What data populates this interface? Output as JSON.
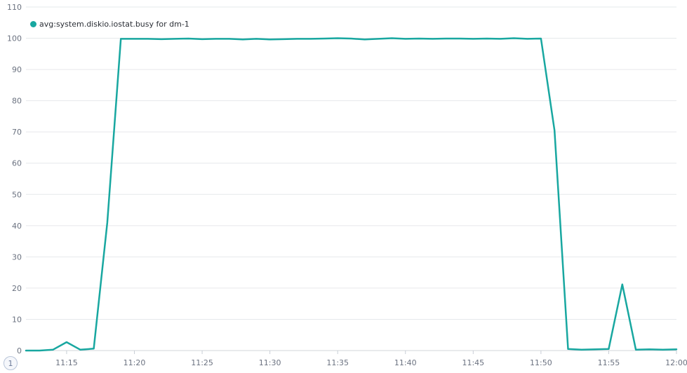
{
  "chart_data": {
    "type": "line",
    "title": "",
    "xlabel": "",
    "ylabel": "",
    "ylim": [
      0,
      110
    ],
    "yticks": [
      0,
      10,
      20,
      30,
      40,
      50,
      60,
      70,
      80,
      90,
      100,
      110
    ],
    "xlim": [
      "11:12",
      "12:00"
    ],
    "xticks": [
      "11:15",
      "11:20",
      "11:25",
      "11:30",
      "11:35",
      "11:40",
      "11:45",
      "11:50",
      "11:55",
      "12:00"
    ],
    "grid": true,
    "legend_position": "top-left",
    "series": [
      {
        "name": "avg:system.diskio.iostat.busy for dm-1",
        "color": "#18a7a0",
        "x": [
          "11:12",
          "11:13",
          "11:14",
          "11:15",
          "11:16",
          "11:17",
          "11:18",
          "11:19",
          "11:20",
          "11:21",
          "11:22",
          "11:23",
          "11:24",
          "11:25",
          "11:26",
          "11:27",
          "11:28",
          "11:29",
          "11:30",
          "11:31",
          "11:32",
          "11:33",
          "11:34",
          "11:35",
          "11:36",
          "11:37",
          "11:38",
          "11:39",
          "11:40",
          "11:41",
          "11:42",
          "11:43",
          "11:44",
          "11:45",
          "11:46",
          "11:47",
          "11:48",
          "11:49",
          "11:50",
          "11:51",
          "11:52",
          "11:53",
          "11:54",
          "11:55",
          "11:56",
          "11:57",
          "11:58",
          "11:59",
          "12:00"
        ],
        "values": [
          0,
          0,
          0.3,
          2.7,
          0.3,
          0.6,
          41,
          99.8,
          99.8,
          99.8,
          99.7,
          99.8,
          99.9,
          99.7,
          99.8,
          99.8,
          99.6,
          99.8,
          99.6,
          99.7,
          99.8,
          99.8,
          99.9,
          100,
          99.9,
          99.6,
          99.8,
          100,
          99.8,
          99.9,
          99.8,
          99.9,
          99.9,
          99.8,
          99.9,
          99.8,
          100,
          99.8,
          99.9,
          70.5,
          0.5,
          0.3,
          0.4,
          0.5,
          21.2,
          0.3,
          0.4,
          0.3,
          0.4
        ]
      }
    ]
  },
  "page_indicator": "1"
}
